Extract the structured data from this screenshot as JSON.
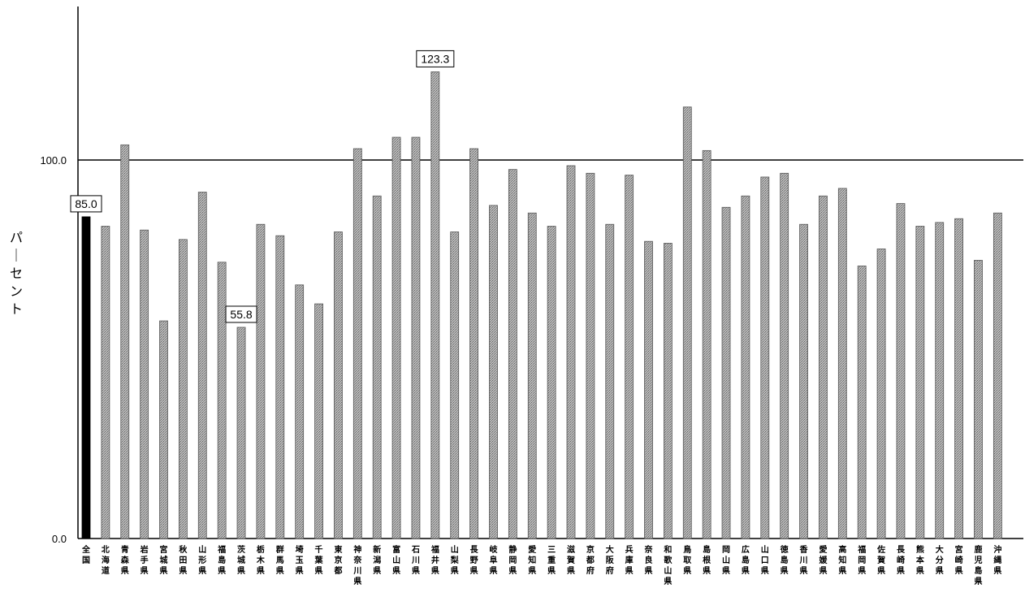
{
  "chart_data": {
    "type": "bar",
    "ylabel": "パーセント",
    "y_ticks": [
      "0.0",
      "100.0"
    ],
    "ylim": [
      0,
      125
    ],
    "reference_line": 100,
    "grid": false,
    "categories": [
      "全国",
      "北海道",
      "青森県",
      "岩手県",
      "宮城県",
      "秋田県",
      "山形県",
      "福島県",
      "茨城県",
      "栃木県",
      "群馬県",
      "埼玉県",
      "千葉県",
      "東京都",
      "神奈川県",
      "新潟県",
      "富山県",
      "石川県",
      "福井県",
      "山梨県",
      "長野県",
      "岐阜県",
      "静岡県",
      "愛知県",
      "三重県",
      "滋賀県",
      "京都府",
      "大阪府",
      "兵庫県",
      "奈良県",
      "和歌山県",
      "鳥取県",
      "島根県",
      "岡山県",
      "広島県",
      "山口県",
      "徳島県",
      "香川県",
      "愛媛県",
      "高知県",
      "福岡県",
      "佐賀県",
      "長崎県",
      "熊本県",
      "大分県",
      "宮崎県",
      "鹿児島県",
      "沖縄県"
    ],
    "values": [
      85.0,
      82.5,
      104.0,
      81.5,
      57.5,
      79.0,
      91.5,
      73.0,
      55.8,
      83.0,
      80.0,
      67.0,
      62.0,
      81.0,
      103.0,
      90.5,
      106.0,
      106.0,
      123.3,
      81.0,
      103.0,
      88.0,
      97.5,
      86.0,
      82.5,
      98.5,
      96.5,
      83.0,
      96.0,
      78.5,
      78.0,
      114.0,
      102.5,
      87.5,
      90.5,
      95.5,
      96.5,
      83.0,
      90.5,
      92.5,
      72.0,
      76.5,
      88.5,
      82.5,
      83.5,
      84.5,
      73.5,
      86.0
    ],
    "highlight_category": "全国",
    "data_labels": [
      {
        "category": "全国",
        "text": "85.0"
      },
      {
        "category": "茨城県",
        "text": "55.8"
      },
      {
        "category": "福井県",
        "text": "123.3"
      }
    ],
    "colors": {
      "highlight_bar": "#000000",
      "bar_fill": "#a9a9a9",
      "bar_edge": "#555555",
      "axis": "#000000"
    }
  }
}
